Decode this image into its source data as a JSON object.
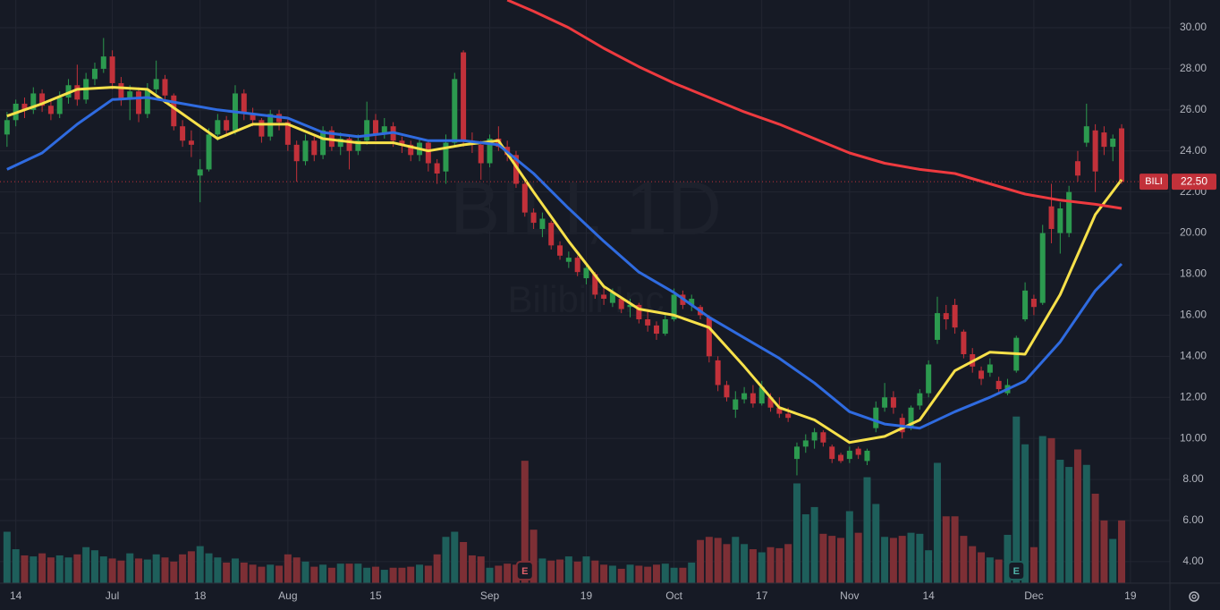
{
  "chart_data": {
    "type": "candlestick",
    "watermark": "BILI, 1D",
    "watermark_sub": "Bilibili Inc",
    "price_label": {
      "symbol": "BILI",
      "value": 22.5,
      "label": "22.50"
    },
    "up_color": "#2c9a4f",
    "down_color": "#c2313a",
    "volume_up_color": "#1e5f5b",
    "volume_down_color": "#7d2f35",
    "xlim": [
      -0.8,
      132.5
    ],
    "xticks": [
      {
        "value": 1,
        "label": "14"
      },
      {
        "value": 12,
        "label": "Jul"
      },
      {
        "value": 22,
        "label": "18"
      },
      {
        "value": 32,
        "label": "Aug"
      },
      {
        "value": 42,
        "label": "15"
      },
      {
        "value": 55,
        "label": "Sep"
      },
      {
        "value": 66,
        "label": "19"
      },
      {
        "value": 76,
        "label": "Oct"
      },
      {
        "value": 86,
        "label": "17"
      },
      {
        "value": 96,
        "label": "Nov"
      },
      {
        "value": 105,
        "label": "14"
      },
      {
        "value": 117,
        "label": "Dec"
      },
      {
        "value": 128,
        "label": "19"
      }
    ],
    "ylim": [
      2.95,
      31.35
    ],
    "yticks": [
      {
        "value": 4,
        "label": "4.00"
      },
      {
        "value": 6,
        "label": "6.00"
      },
      {
        "value": 8,
        "label": "8.00"
      },
      {
        "value": 10,
        "label": "10.00"
      },
      {
        "value": 12,
        "label": "12.00"
      },
      {
        "value": 14,
        "label": "14.00"
      },
      {
        "value": 16,
        "label": "16.00"
      },
      {
        "value": 18,
        "label": "18.00"
      },
      {
        "value": 20,
        "label": "20.00"
      },
      {
        "value": 22,
        "label": "22.00"
      },
      {
        "value": 24,
        "label": "24.00"
      },
      {
        "value": 26,
        "label": "26.00"
      },
      {
        "value": 28,
        "label": "28.00"
      },
      {
        "value": 30,
        "label": "30.00"
      }
    ],
    "volume_lim": [
      0,
      56.7
    ],
    "grid": true,
    "open": [
      24.8,
      25.5,
      26.3,
      26.0,
      26.8,
      26.2,
      25.8,
      26.6,
      27.2,
      26.5,
      27.5,
      28.0,
      28.6,
      27.3,
      26.5,
      26.9,
      25.8,
      27.0,
      27.5,
      26.7,
      25.2,
      24.5,
      22.8,
      23.1,
      24.8,
      25.5,
      25.0,
      26.8,
      25.8,
      25.5,
      24.7,
      25.8,
      25.4,
      24.3,
      23.5,
      24.5,
      23.8,
      25.0,
      24.2,
      24.6,
      24.0,
      24.5,
      25.5,
      24.8,
      25.2,
      24.5,
      24.3,
      23.8,
      24.4,
      23.4,
      23.0,
      24.4,
      28.8,
      24.5,
      24.3,
      23.4,
      24.6,
      24.2,
      23.8,
      22.4,
      21.0,
      20.2,
      20.5,
      19.4,
      18.6,
      18.8,
      17.8,
      18.0,
      17.0,
      16.6,
      16.8,
      16.4,
      16.5,
      15.8,
      15.5,
      15.1,
      15.8,
      17.0,
      16.5,
      16.4,
      15.9,
      13.8,
      12.6,
      11.4,
      11.9,
      12.2,
      11.7,
      12.0,
      11.5,
      11.2,
      9.0,
      9.6,
      9.9,
      10.3,
      9.6,
      9.2,
      9.0,
      9.5,
      8.9,
      10.5,
      11.5,
      12.0,
      11.0,
      10.5,
      11.6,
      12.2,
      14.8,
      16.1,
      16.5,
      15.2,
      14.1,
      13.3,
      13.2,
      12.8,
      12.2,
      13.3,
      15.8,
      16.8,
      16.6,
      21.3,
      20.0,
      20.0,
      23.5,
      24.4,
      25.0,
      24.9,
      24.2,
      25.1
    ],
    "high": [
      25.9,
      26.5,
      26.6,
      27.1,
      27.0,
      26.5,
      26.9,
      27.5,
      28.2,
      27.8,
      28.3,
      29.5,
      28.9,
      27.6,
      27.2,
      27.1,
      27.3,
      28.4,
      27.7,
      26.8,
      25.5,
      25.0,
      23.6,
      25.1,
      25.8,
      25.7,
      27.2,
      27.0,
      26.1,
      25.6,
      26.0,
      26.0,
      25.6,
      24.5,
      24.8,
      24.7,
      25.2,
      25.2,
      24.9,
      24.7,
      24.8,
      26.4,
      25.8,
      25.6,
      25.4,
      24.7,
      24.5,
      24.6,
      24.5,
      23.6,
      24.8,
      27.8,
      28.9,
      24.9,
      24.5,
      24.8,
      25.2,
      24.5,
      24.0,
      22.6,
      21.2,
      21.0,
      20.6,
      19.6,
      19.1,
      18.9,
      18.5,
      18.1,
      17.4,
      17.3,
      16.9,
      16.8,
      16.6,
      16.3,
      15.7,
      16.0,
      17.3,
      17.2,
      17.0,
      16.5,
      16.0,
      14.0,
      12.8,
      12.3,
      12.5,
      12.6,
      12.8,
      12.2,
      12.0,
      11.5,
      9.8,
      10.2,
      10.5,
      10.4,
      9.7,
      9.3,
      9.6,
      9.6,
      9.5,
      11.8,
      12.7,
      12.3,
      11.2,
      11.6,
      12.4,
      13.8,
      16.9,
      16.5,
      16.8,
      15.3,
      14.4,
      13.5,
      13.9,
      13.0,
      12.9,
      15.0,
      17.6,
      17.0,
      20.4,
      22.4,
      21.5,
      22.3,
      24.0,
      26.3,
      25.3,
      25.2,
      24.8,
      25.3
    ],
    "low": [
      24.2,
      25.2,
      25.6,
      25.8,
      25.9,
      25.5,
      25.6,
      26.3,
      26.2,
      26.3,
      27.2,
      27.8,
      27.0,
      26.2,
      25.5,
      25.4,
      25.6,
      26.8,
      26.3,
      25.0,
      24.2,
      23.7,
      21.5,
      23.0,
      24.5,
      24.7,
      24.8,
      25.5,
      25.2,
      24.4,
      24.5,
      25.0,
      24.0,
      22.5,
      23.3,
      23.5,
      23.6,
      24.0,
      23.8,
      23.1,
      23.8,
      24.3,
      24.5,
      24.6,
      24.2,
      23.9,
      23.5,
      23.5,
      23.0,
      22.4,
      22.4,
      24.2,
      24.2,
      23.9,
      22.6,
      23.2,
      24.0,
      23.5,
      22.2,
      20.8,
      20.2,
      19.8,
      19.2,
      18.7,
      18.3,
      17.9,
      17.5,
      16.8,
      16.5,
      16.4,
      16.1,
      15.9,
      15.6,
      15.2,
      14.8,
      15.0,
      15.7,
      16.3,
      16.2,
      15.8,
      13.7,
      12.3,
      11.8,
      11.0,
      11.7,
      11.5,
      11.6,
      11.3,
      11.0,
      10.8,
      8.2,
      9.3,
      9.5,
      9.6,
      8.8,
      8.8,
      8.8,
      9.0,
      8.7,
      10.3,
      11.3,
      11.2,
      10.0,
      10.4,
      11.4,
      12.0,
      14.6,
      15.3,
      15.1,
      13.9,
      13.2,
      12.6,
      13.0,
      12.2,
      12.1,
      13.2,
      15.7,
      16.0,
      16.5,
      19.5,
      19.0,
      19.8,
      22.5,
      24.2,
      22.0,
      23.8,
      23.5,
      22.4
    ],
    "close": [
      25.5,
      26.3,
      26.0,
      26.8,
      26.2,
      25.8,
      26.6,
      27.2,
      26.5,
      27.5,
      28.0,
      28.6,
      27.3,
      26.5,
      26.9,
      25.8,
      27.0,
      27.5,
      26.7,
      25.2,
      24.5,
      24.3,
      23.1,
      24.8,
      25.5,
      25.0,
      26.8,
      25.8,
      25.5,
      24.7,
      25.8,
      25.4,
      24.3,
      23.5,
      24.5,
      23.8,
      25.0,
      24.2,
      24.6,
      24.0,
      24.5,
      25.5,
      24.8,
      25.2,
      24.5,
      24.3,
      23.8,
      24.4,
      23.4,
      22.9,
      24.4,
      27.5,
      24.5,
      24.3,
      23.4,
      24.6,
      24.2,
      23.8,
      22.4,
      21.0,
      20.5,
      20.7,
      19.4,
      18.9,
      18.8,
      18.1,
      18.3,
      17.0,
      16.8,
      17.1,
      16.3,
      16.5,
      15.8,
      15.5,
      15.1,
      15.8,
      17.0,
      16.5,
      16.8,
      16.0,
      14.0,
      12.6,
      12.0,
      11.9,
      12.2,
      11.7,
      12.5,
      11.5,
      11.2,
      11.0,
      9.6,
      9.9,
      10.3,
      9.8,
      9.0,
      8.9,
      9.4,
      9.2,
      9.4,
      11.5,
      12.0,
      11.5,
      10.3,
      11.5,
      12.2,
      13.6,
      16.1,
      15.8,
      15.4,
      14.1,
      13.5,
      12.9,
      13.6,
      12.4,
      12.6,
      14.9,
      17.2,
      16.4,
      20.0,
      20.2,
      21.2,
      22.0,
      22.8,
      25.2,
      23.0,
      24.2,
      24.6,
      22.5
    ],
    "volume": [
      5.0,
      3.3,
      2.7,
      2.6,
      2.9,
      2.5,
      2.7,
      2.5,
      2.8,
      3.5,
      3.2,
      2.6,
      2.4,
      2.2,
      2.9,
      2.4,
      2.3,
      2.8,
      2.5,
      2.1,
      2.8,
      3.1,
      3.6,
      2.9,
      2.5,
      2.0,
      2.4,
      2.0,
      1.8,
      1.6,
      1.8,
      1.7,
      2.8,
      2.5,
      2.1,
      1.6,
      1.8,
      1.5,
      1.9,
      1.9,
      1.9,
      1.5,
      1.6,
      1.3,
      1.5,
      1.5,
      1.6,
      1.8,
      1.7,
      2.8,
      4.5,
      5.0,
      4.0,
      2.7,
      2.6,
      1.5,
      1.7,
      1.9,
      1.8,
      11.9,
      5.2,
      2.4,
      2.2,
      2.3,
      2.6,
      2.1,
      2.6,
      2.2,
      1.8,
      1.7,
      1.4,
      1.8,
      1.7,
      1.6,
      1.8,
      1.9,
      1.5,
      1.5,
      2.0,
      4.2,
      4.5,
      4.4,
      3.8,
      4.5,
      3.8,
      3.3,
      3.0,
      3.5,
      3.4,
      3.8,
      9.7,
      6.7,
      7.4,
      4.8,
      4.6,
      4.4,
      7.0,
      4.9,
      10.3,
      7.7,
      4.5,
      4.4,
      4.6,
      4.9,
      4.8,
      3.2,
      11.7,
      6.5,
      6.5,
      4.6,
      3.6,
      3.0,
      2.5,
      2.3,
      4.7,
      16.2,
      13.5,
      3.5,
      14.3,
      14.1,
      12.0,
      11.3,
      13.0,
      11.5,
      8.7,
      6.1,
      4.3,
      6.1
    ],
    "ma": [
      {
        "color": "#f7e14a",
        "x": [
          0,
          4,
          8,
          12,
          16,
          20,
          24,
          28,
          32,
          36,
          40,
          44,
          48,
          52,
          56,
          60,
          64,
          68,
          72,
          76,
          80,
          84,
          88,
          92,
          96,
          100,
          104,
          108,
          112,
          116,
          120,
          124,
          127
        ],
        "values": [
          25.7,
          26.3,
          27.0,
          27.1,
          27.0,
          25.8,
          24.6,
          25.3,
          25.3,
          24.6,
          24.4,
          24.4,
          24.0,
          24.3,
          24.5,
          22.0,
          19.6,
          17.4,
          16.3,
          16.0,
          15.4,
          13.5,
          11.5,
          10.9,
          9.8,
          10.1,
          10.9,
          13.3,
          14.2,
          14.1,
          17.0,
          20.9,
          22.6
        ]
      },
      {
        "color": "#2f6be0",
        "x": [
          0,
          4,
          8,
          12,
          16,
          20,
          24,
          28,
          32,
          36,
          40,
          44,
          48,
          52,
          56,
          60,
          64,
          68,
          72,
          76,
          80,
          84,
          88,
          92,
          96,
          100,
          104,
          108,
          112,
          116,
          120,
          124,
          127
        ],
        "values": [
          23.1,
          23.9,
          25.3,
          26.5,
          26.6,
          26.3,
          26.0,
          25.8,
          25.6,
          24.9,
          24.7,
          24.9,
          24.5,
          24.5,
          24.3,
          22.9,
          21.2,
          19.6,
          18.1,
          17.1,
          15.9,
          14.9,
          13.9,
          12.7,
          11.3,
          10.7,
          10.5,
          11.3,
          12.0,
          12.8,
          14.7,
          17.2,
          18.5
        ]
      },
      {
        "color": "#ee3a3f",
        "x": [
          57,
          60,
          64,
          68,
          72,
          76,
          80,
          84,
          88,
          92,
          96,
          100,
          104,
          108,
          112,
          116,
          120,
          124,
          127
        ],
        "values": [
          31.35,
          30.8,
          30.0,
          29.0,
          28.1,
          27.3,
          26.6,
          25.9,
          25.3,
          24.6,
          23.9,
          23.4,
          23.1,
          22.9,
          22.4,
          21.9,
          21.6,
          21.4,
          21.2
        ]
      }
    ],
    "earnings": [
      {
        "x": 59,
        "label": "E"
      },
      {
        "x": 115,
        "label": "E"
      }
    ]
  }
}
